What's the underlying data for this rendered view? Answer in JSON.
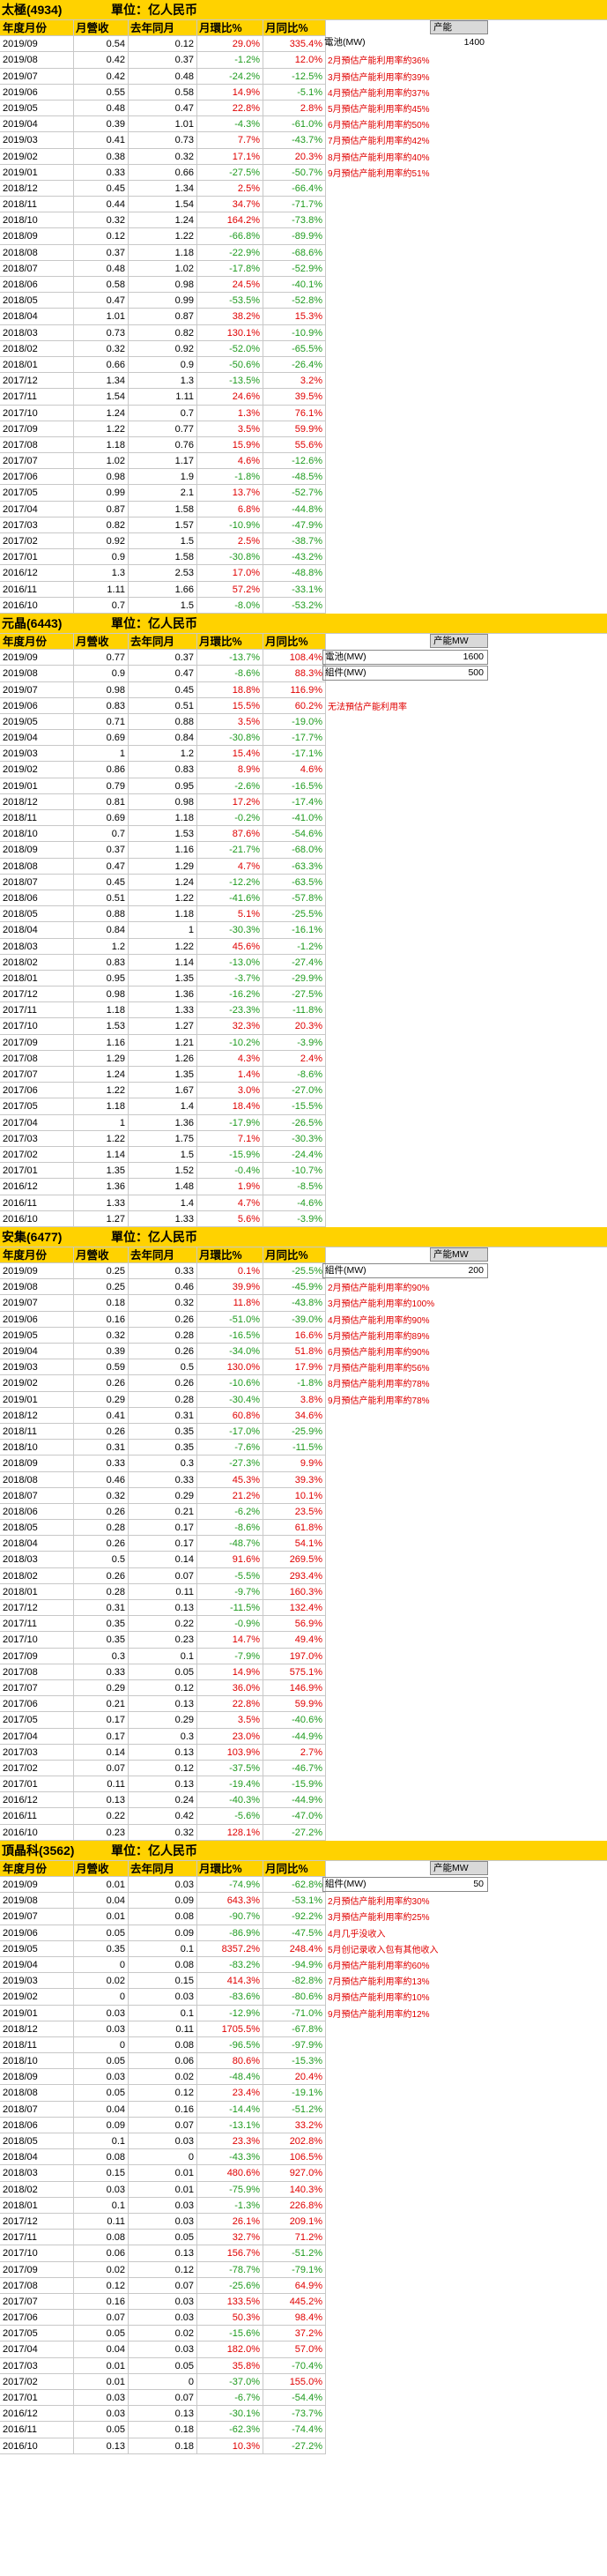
{
  "headers": [
    "年度月份",
    "月營收",
    "去年同月",
    "月環比%",
    "月同比%"
  ],
  "sections": [
    {
      "title": "太極(4934)",
      "unit": "單位：亿人民币",
      "side": {
        "label": "产能",
        "rows": [
          {
            "k": "電池(MW)",
            "v": "1400"
          }
        ],
        "notes": [
          "2月預估产能利用率約36%",
          "3月預估产能利用率約39%",
          "4月預估产能利用率約37%",
          "5月預估产能利用率約45%",
          "6月預估产能利用率約50%",
          "7月預估产能利用率約42%",
          "8月預估产能利用率約40%",
          "9月預估产能利用率約51%"
        ]
      },
      "rows": [
        [
          "2019/09",
          "0.54",
          "0.12",
          "29.0%",
          "335.4%"
        ],
        [
          "2019/08",
          "0.42",
          "0.37",
          "-1.2%",
          "12.0%"
        ],
        [
          "2019/07",
          "0.42",
          "0.48",
          "-24.2%",
          "-12.5%"
        ],
        [
          "2019/06",
          "0.55",
          "0.58",
          "14.9%",
          "-5.1%"
        ],
        [
          "2019/05",
          "0.48",
          "0.47",
          "22.8%",
          "2.8%"
        ],
        [
          "2019/04",
          "0.39",
          "1.01",
          "-4.3%",
          "-61.0%"
        ],
        [
          "2019/03",
          "0.41",
          "0.73",
          "7.7%",
          "-43.7%"
        ],
        [
          "2019/02",
          "0.38",
          "0.32",
          "17.1%",
          "20.3%"
        ],
        [
          "2019/01",
          "0.33",
          "0.66",
          "-27.5%",
          "-50.7%"
        ],
        [
          "2018/12",
          "0.45",
          "1.34",
          "2.5%",
          "-66.4%"
        ],
        [
          "2018/11",
          "0.44",
          "1.54",
          "34.7%",
          "-71.7%"
        ],
        [
          "2018/10",
          "0.32",
          "1.24",
          "164.2%",
          "-73.8%"
        ],
        [
          "2018/09",
          "0.12",
          "1.22",
          "-66.8%",
          "-89.9%"
        ],
        [
          "2018/08",
          "0.37",
          "1.18",
          "-22.9%",
          "-68.6%"
        ],
        [
          "2018/07",
          "0.48",
          "1.02",
          "-17.8%",
          "-52.9%"
        ],
        [
          "2018/06",
          "0.58",
          "0.98",
          "24.5%",
          "-40.1%"
        ],
        [
          "2018/05",
          "0.47",
          "0.99",
          "-53.5%",
          "-52.8%"
        ],
        [
          "2018/04",
          "1.01",
          "0.87",
          "38.2%",
          "15.3%"
        ],
        [
          "2018/03",
          "0.73",
          "0.82",
          "130.1%",
          "-10.9%"
        ],
        [
          "2018/02",
          "0.32",
          "0.92",
          "-52.0%",
          "-65.5%"
        ],
        [
          "2018/01",
          "0.66",
          "0.9",
          "-50.6%",
          "-26.4%"
        ],
        [
          "2017/12",
          "1.34",
          "1.3",
          "-13.5%",
          "3.2%"
        ],
        [
          "2017/11",
          "1.54",
          "1.11",
          "24.6%",
          "39.5%"
        ],
        [
          "2017/10",
          "1.24",
          "0.7",
          "1.3%",
          "76.1%"
        ],
        [
          "2017/09",
          "1.22",
          "0.77",
          "3.5%",
          "59.9%"
        ],
        [
          "2017/08",
          "1.18",
          "0.76",
          "15.9%",
          "55.6%"
        ],
        [
          "2017/07",
          "1.02",
          "1.17",
          "4.6%",
          "-12.6%"
        ],
        [
          "2017/06",
          "0.98",
          "1.9",
          "-1.8%",
          "-48.5%"
        ],
        [
          "2017/05",
          "0.99",
          "2.1",
          "13.7%",
          "-52.7%"
        ],
        [
          "2017/04",
          "0.87",
          "1.58",
          "6.8%",
          "-44.8%"
        ],
        [
          "2017/03",
          "0.82",
          "1.57",
          "-10.9%",
          "-47.9%"
        ],
        [
          "2017/02",
          "0.92",
          "1.5",
          "2.5%",
          "-38.7%"
        ],
        [
          "2017/01",
          "0.9",
          "1.58",
          "-30.8%",
          "-43.2%"
        ],
        [
          "2016/12",
          "1.3",
          "2.53",
          "17.0%",
          "-48.8%"
        ],
        [
          "2016/11",
          "1.11",
          "1.66",
          "57.2%",
          "-33.1%"
        ],
        [
          "2016/10",
          "0.7",
          "1.5",
          "-8.0%",
          "-53.2%"
        ]
      ]
    },
    {
      "title": "元晶(6443)",
      "unit": "單位：亿人民币",
      "side": {
        "label": "产能MW",
        "rows": [
          {
            "k": "電池(MW)",
            "v": "1600"
          },
          {
            "k": "組件(MW)",
            "v": "500"
          }
        ],
        "notes": [
          "无法預估产能利用率"
        ]
      },
      "rows": [
        [
          "2019/09",
          "0.77",
          "0.37",
          "-13.7%",
          "108.4%"
        ],
        [
          "2019/08",
          "0.9",
          "0.47",
          "-8.6%",
          "88.3%"
        ],
        [
          "2019/07",
          "0.98",
          "0.45",
          "18.8%",
          "116.9%"
        ],
        [
          "2019/06",
          "0.83",
          "0.51",
          "15.5%",
          "60.2%"
        ],
        [
          "2019/05",
          "0.71",
          "0.88",
          "3.5%",
          "-19.0%"
        ],
        [
          "2019/04",
          "0.69",
          "0.84",
          "-30.8%",
          "-17.7%"
        ],
        [
          "2019/03",
          "1",
          "1.2",
          "15.4%",
          "-17.1%"
        ],
        [
          "2019/02",
          "0.86",
          "0.83",
          "8.9%",
          "4.6%"
        ],
        [
          "2019/01",
          "0.79",
          "0.95",
          "-2.6%",
          "-16.5%"
        ],
        [
          "2018/12",
          "0.81",
          "0.98",
          "17.2%",
          "-17.4%"
        ],
        [
          "2018/11",
          "0.69",
          "1.18",
          "-0.2%",
          "-41.0%"
        ],
        [
          "2018/10",
          "0.7",
          "1.53",
          "87.6%",
          "-54.6%"
        ],
        [
          "2018/09",
          "0.37",
          "1.16",
          "-21.7%",
          "-68.0%"
        ],
        [
          "2018/08",
          "0.47",
          "1.29",
          "4.7%",
          "-63.3%"
        ],
        [
          "2018/07",
          "0.45",
          "1.24",
          "-12.2%",
          "-63.5%"
        ],
        [
          "2018/06",
          "0.51",
          "1.22",
          "-41.6%",
          "-57.8%"
        ],
        [
          "2018/05",
          "0.88",
          "1.18",
          "5.1%",
          "-25.5%"
        ],
        [
          "2018/04",
          "0.84",
          "1",
          "-30.3%",
          "-16.1%"
        ],
        [
          "2018/03",
          "1.2",
          "1.22",
          "45.6%",
          "-1.2%"
        ],
        [
          "2018/02",
          "0.83",
          "1.14",
          "-13.0%",
          "-27.4%"
        ],
        [
          "2018/01",
          "0.95",
          "1.35",
          "-3.7%",
          "-29.9%"
        ],
        [
          "2017/12",
          "0.98",
          "1.36",
          "-16.2%",
          "-27.5%"
        ],
        [
          "2017/11",
          "1.18",
          "1.33",
          "-23.3%",
          "-11.8%"
        ],
        [
          "2017/10",
          "1.53",
          "1.27",
          "32.3%",
          "20.3%"
        ],
        [
          "2017/09",
          "1.16",
          "1.21",
          "-10.2%",
          "-3.9%"
        ],
        [
          "2017/08",
          "1.29",
          "1.26",
          "4.3%",
          "2.4%"
        ],
        [
          "2017/07",
          "1.24",
          "1.35",
          "1.4%",
          "-8.6%"
        ],
        [
          "2017/06",
          "1.22",
          "1.67",
          "3.0%",
          "-27.0%"
        ],
        [
          "2017/05",
          "1.18",
          "1.4",
          "18.4%",
          "-15.5%"
        ],
        [
          "2017/04",
          "1",
          "1.36",
          "-17.9%",
          "-26.5%"
        ],
        [
          "2017/03",
          "1.22",
          "1.75",
          "7.1%",
          "-30.3%"
        ],
        [
          "2017/02",
          "1.14",
          "1.5",
          "-15.9%",
          "-24.4%"
        ],
        [
          "2017/01",
          "1.35",
          "1.52",
          "-0.4%",
          "-10.7%"
        ],
        [
          "2016/12",
          "1.36",
          "1.48",
          "1.9%",
          "-8.5%"
        ],
        [
          "2016/11",
          "1.33",
          "1.4",
          "4.7%",
          "-4.6%"
        ],
        [
          "2016/10",
          "1.27",
          "1.33",
          "5.6%",
          "-3.9%"
        ]
      ]
    },
    {
      "title": "安集(6477)",
      "unit": "單位：亿人民币",
      "side": {
        "label": "产能MW",
        "rows": [
          {
            "k": "組件(MW)",
            "v": "200"
          }
        ],
        "notes": [
          "2月預估产能利用率約90%",
          "3月預估产能利用率約100%",
          "4月預估产能利用率約90%",
          "5月預估产能利用率約89%",
          "6月預估产能利用率約90%",
          "7月預估产能利用率約56%",
          "8月預估产能利用率約78%",
          "9月預估产能利用率約78%"
        ]
      },
      "rows": [
        [
          "2019/09",
          "0.25",
          "0.33",
          "0.1%",
          "-25.5%"
        ],
        [
          "2019/08",
          "0.25",
          "0.46",
          "39.9%",
          "-45.9%"
        ],
        [
          "2019/07",
          "0.18",
          "0.32",
          "11.8%",
          "-43.8%"
        ],
        [
          "2019/06",
          "0.16",
          "0.26",
          "-51.0%",
          "-39.0%"
        ],
        [
          "2019/05",
          "0.32",
          "0.28",
          "-16.5%",
          "16.6%"
        ],
        [
          "2019/04",
          "0.39",
          "0.26",
          "-34.0%",
          "51.8%"
        ],
        [
          "2019/03",
          "0.59",
          "0.5",
          "130.0%",
          "17.9%"
        ],
        [
          "2019/02",
          "0.26",
          "0.26",
          "-10.6%",
          "-1.8%"
        ],
        [
          "2019/01",
          "0.29",
          "0.28",
          "-30.4%",
          "3.8%"
        ],
        [
          "2018/12",
          "0.41",
          "0.31",
          "60.8%",
          "34.6%"
        ],
        [
          "2018/11",
          "0.26",
          "0.35",
          "-17.0%",
          "-25.9%"
        ],
        [
          "2018/10",
          "0.31",
          "0.35",
          "-7.6%",
          "-11.5%"
        ],
        [
          "2018/09",
          "0.33",
          "0.3",
          "-27.3%",
          "9.9%"
        ],
        [
          "2018/08",
          "0.46",
          "0.33",
          "45.3%",
          "39.3%"
        ],
        [
          "2018/07",
          "0.32",
          "0.29",
          "21.2%",
          "10.1%"
        ],
        [
          "2018/06",
          "0.26",
          "0.21",
          "-6.2%",
          "23.5%"
        ],
        [
          "2018/05",
          "0.28",
          "0.17",
          "-8.6%",
          "61.8%"
        ],
        [
          "2018/04",
          "0.26",
          "0.17",
          "-48.7%",
          "54.1%"
        ],
        [
          "2018/03",
          "0.5",
          "0.14",
          "91.6%",
          "269.5%"
        ],
        [
          "2018/02",
          "0.26",
          "0.07",
          "-5.5%",
          "293.4%"
        ],
        [
          "2018/01",
          "0.28",
          "0.11",
          "-9.7%",
          "160.3%"
        ],
        [
          "2017/12",
          "0.31",
          "0.13",
          "-11.5%",
          "132.4%"
        ],
        [
          "2017/11",
          "0.35",
          "0.22",
          "-0.9%",
          "56.9%"
        ],
        [
          "2017/10",
          "0.35",
          "0.23",
          "14.7%",
          "49.4%"
        ],
        [
          "2017/09",
          "0.3",
          "0.1",
          "-7.9%",
          "197.0%"
        ],
        [
          "2017/08",
          "0.33",
          "0.05",
          "14.9%",
          "575.1%"
        ],
        [
          "2017/07",
          "0.29",
          "0.12",
          "36.0%",
          "146.9%"
        ],
        [
          "2017/06",
          "0.21",
          "0.13",
          "22.8%",
          "59.9%"
        ],
        [
          "2017/05",
          "0.17",
          "0.29",
          "3.5%",
          "-40.6%"
        ],
        [
          "2017/04",
          "0.17",
          "0.3",
          "23.0%",
          "-44.9%"
        ],
        [
          "2017/03",
          "0.14",
          "0.13",
          "103.9%",
          "2.7%"
        ],
        [
          "2017/02",
          "0.07",
          "0.12",
          "-37.5%",
          "-46.7%"
        ],
        [
          "2017/01",
          "0.11",
          "0.13",
          "-19.4%",
          "-15.9%"
        ],
        [
          "2016/12",
          "0.13",
          "0.24",
          "-40.3%",
          "-44.9%"
        ],
        [
          "2016/11",
          "0.22",
          "0.42",
          "-5.6%",
          "-47.0%"
        ],
        [
          "2016/10",
          "0.23",
          "0.32",
          "128.1%",
          "-27.2%"
        ]
      ]
    },
    {
      "title": "頂晶科(3562)",
      "unit": "單位：亿人民币",
      "side": {
        "label": "产能MW",
        "rows": [
          {
            "k": "組件(MW)",
            "v": "50"
          }
        ],
        "notes": [
          "2月預估产能利用率約30%",
          "3月預估产能利用率約25%",
          "4月几乎没收入",
          "5月创记录收入包有其他收入",
          "6月預估产能利用率約60%",
          "7月預估产能利用率約13%",
          "8月預估产能利用率約10%",
          "9月預估产能利用率約12%"
        ]
      },
      "rows": [
        [
          "2019/09",
          "0.01",
          "0.03",
          "-74.9%",
          "-62.8%"
        ],
        [
          "2019/08",
          "0.04",
          "0.09",
          "643.3%",
          "-53.1%"
        ],
        [
          "2019/07",
          "0.01",
          "0.08",
          "-90.7%",
          "-92.2%"
        ],
        [
          "2019/06",
          "0.05",
          "0.09",
          "-86.9%",
          "-47.5%"
        ],
        [
          "2019/05",
          "0.35",
          "0.1",
          "8357.2%",
          "248.4%"
        ],
        [
          "2019/04",
          "0",
          "0.08",
          "-83.2%",
          "-94.9%"
        ],
        [
          "2019/03",
          "0.02",
          "0.15",
          "414.3%",
          "-82.8%"
        ],
        [
          "2019/02",
          "0",
          "0.03",
          "-83.6%",
          "-80.6%"
        ],
        [
          "2019/01",
          "0.03",
          "0.1",
          "-12.9%",
          "-71.0%"
        ],
        [
          "2018/12",
          "0.03",
          "0.11",
          "1705.5%",
          "-67.8%"
        ],
        [
          "2018/11",
          "0",
          "0.08",
          "-96.5%",
          "-97.9%"
        ],
        [
          "2018/10",
          "0.05",
          "0.06",
          "80.6%",
          "-15.3%"
        ],
        [
          "2018/09",
          "0.03",
          "0.02",
          "-48.4%",
          "20.4%"
        ],
        [
          "2018/08",
          "0.05",
          "0.12",
          "23.4%",
          "-19.1%"
        ],
        [
          "2018/07",
          "0.04",
          "0.16",
          "-14.4%",
          "-51.2%"
        ],
        [
          "2018/06",
          "0.09",
          "0.07",
          "-13.1%",
          "33.2%"
        ],
        [
          "2018/05",
          "0.1",
          "0.03",
          "23.3%",
          "202.8%"
        ],
        [
          "2018/04",
          "0.08",
          "0",
          "-43.3%",
          "106.5%"
        ],
        [
          "2018/03",
          "0.15",
          "0.01",
          "480.6%",
          "927.0%"
        ],
        [
          "2018/02",
          "0.03",
          "0.01",
          "-75.9%",
          "140.3%"
        ],
        [
          "2018/01",
          "0.1",
          "0.03",
          "-1.3%",
          "226.8%"
        ],
        [
          "2017/12",
          "0.11",
          "0.03",
          "26.1%",
          "209.1%"
        ],
        [
          "2017/11",
          "0.08",
          "0.05",
          "32.7%",
          "71.2%"
        ],
        [
          "2017/10",
          "0.06",
          "0.13",
          "156.7%",
          "-51.2%"
        ],
        [
          "2017/09",
          "0.02",
          "0.12",
          "-78.7%",
          "-79.1%"
        ],
        [
          "2017/08",
          "0.12",
          "0.07",
          "-25.6%",
          "64.9%"
        ],
        [
          "2017/07",
          "0.16",
          "0.03",
          "133.5%",
          "445.2%"
        ],
        [
          "2017/06",
          "0.07",
          "0.03",
          "50.3%",
          "98.4%"
        ],
        [
          "2017/05",
          "0.05",
          "0.02",
          "-15.6%",
          "37.2%"
        ],
        [
          "2017/04",
          "0.04",
          "0.03",
          "182.0%",
          "57.0%"
        ],
        [
          "2017/03",
          "0.01",
          "0.05",
          "35.8%",
          "-70.4%"
        ],
        [
          "2017/02",
          "0.01",
          "0",
          "-37.0%",
          "155.0%"
        ],
        [
          "2017/01",
          "0.03",
          "0.07",
          "-6.7%",
          "-54.4%"
        ],
        [
          "2016/12",
          "0.03",
          "0.13",
          "-30.1%",
          "-73.7%"
        ],
        [
          "2016/11",
          "0.05",
          "0.18",
          "-62.3%",
          "-74.4%"
        ],
        [
          "2016/10",
          "0.13",
          "0.18",
          "10.3%",
          "-27.2%"
        ]
      ]
    }
  ]
}
